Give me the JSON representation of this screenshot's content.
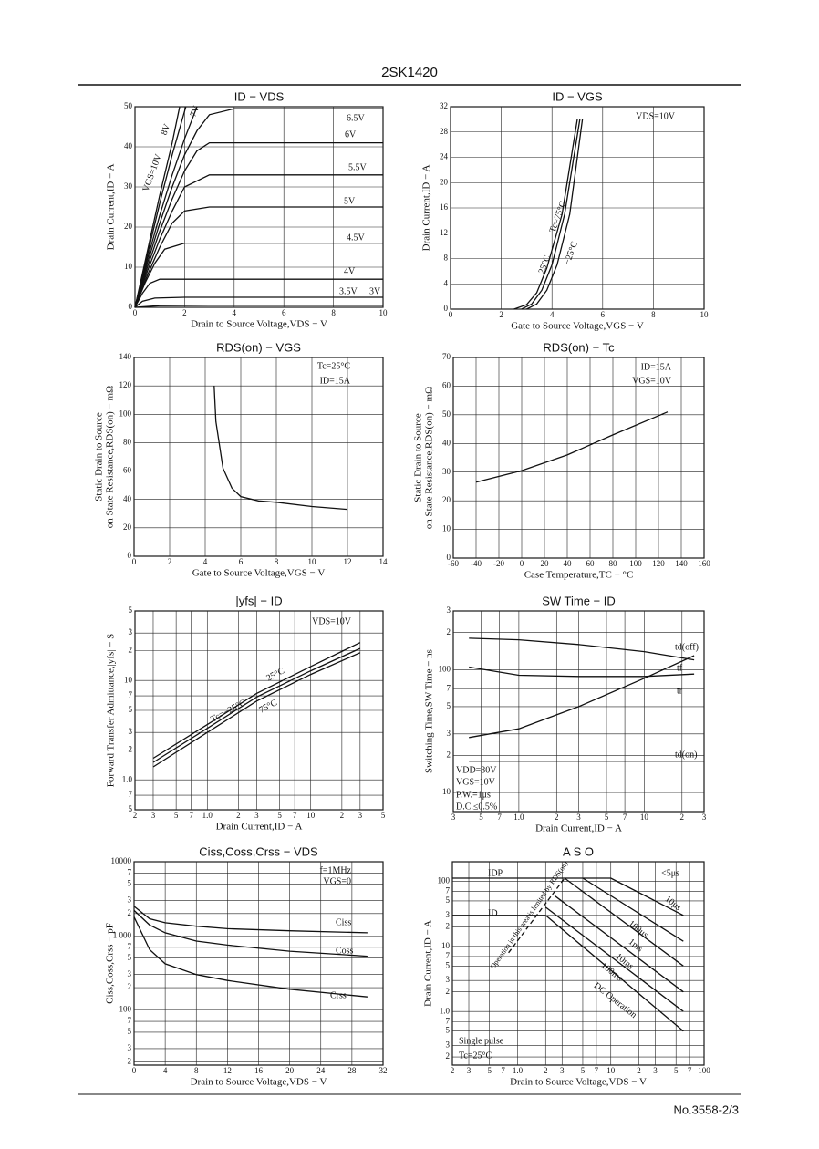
{
  "header": {
    "title": "2SK1420"
  },
  "chart_data": [
    {
      "type": "line",
      "title": "ID − VDS",
      "xlabel": "Drain to Source Voltage,VDS − V",
      "ylabel": "Drain Current,ID − A",
      "xlim": [
        0,
        10
      ],
      "ylim": [
        0,
        50
      ],
      "xticks": [
        0,
        2,
        4,
        6,
        8,
        10
      ],
      "yticks": [
        0,
        10,
        20,
        30,
        40,
        50
      ],
      "grid": true,
      "color": "#111",
      "annotations": [],
      "series": [
        {
          "name": "3V",
          "x": [
            0,
            1,
            3,
            10
          ],
          "values": [
            0,
            0.4,
            0.5,
            0.5
          ]
        },
        {
          "name": "3.5V",
          "x": [
            0,
            0.3,
            0.8,
            2,
            10
          ],
          "values": [
            0,
            1.5,
            2.3,
            2.5,
            2.5
          ]
        },
        {
          "name": "4V",
          "x": [
            0,
            0.3,
            0.6,
            1,
            2,
            10
          ],
          "values": [
            0,
            3.5,
            6,
            7,
            7,
            7
          ]
        },
        {
          "name": "4.5V",
          "x": [
            0,
            0.4,
            0.8,
            1.2,
            2,
            10
          ],
          "values": [
            0,
            6,
            11,
            14.5,
            16,
            16
          ]
        },
        {
          "name": "5V",
          "x": [
            0,
            0.5,
            1,
            1.5,
            2,
            3,
            10
          ],
          "values": [
            0,
            8,
            15,
            21,
            24,
            25,
            25
          ]
        },
        {
          "name": "5.5V",
          "x": [
            0,
            0.5,
            1,
            1.5,
            2,
            3,
            10
          ],
          "values": [
            0,
            9,
            17,
            24,
            30,
            33,
            33
          ]
        },
        {
          "name": "6V",
          "x": [
            0,
            0.5,
            1,
            1.5,
            2,
            2.5,
            3,
            10
          ],
          "values": [
            0,
            10,
            19,
            27,
            34,
            39,
            41,
            41
          ]
        },
        {
          "name": "6.5V",
          "x": [
            0,
            0.5,
            1,
            1.5,
            2,
            2.5,
            3,
            4,
            10
          ],
          "values": [
            0,
            11,
            21,
            30,
            38,
            44,
            48,
            49.5,
            49.5
          ]
        },
        {
          "name": "7V",
          "x": [
            0,
            0.5,
            1,
            1.5,
            2,
            2.5
          ],
          "values": [
            0,
            12,
            23,
            33,
            42,
            50
          ]
        },
        {
          "name": "8V",
          "x": [
            0,
            0.5,
            1,
            1.5,
            2.05
          ],
          "values": [
            0,
            13,
            26,
            38,
            50
          ]
        },
        {
          "name": "VGS=10V",
          "x": [
            0,
            0.5,
            1,
            1.5,
            1.8
          ],
          "values": [
            0,
            14,
            28,
            41,
            50
          ]
        }
      ]
    },
    {
      "type": "line",
      "title": "ID − VGS",
      "xlabel": "Gate to Source Voltage,VGS − V",
      "ylabel": "Drain Current,ID − A",
      "xlim": [
        0,
        10
      ],
      "ylim": [
        0,
        32
      ],
      "xticks": [
        0,
        2,
        4,
        6,
        8,
        10
      ],
      "yticks": [
        0,
        4,
        8,
        12,
        16,
        20,
        24,
        28,
        32
      ],
      "grid": true,
      "color": "#111",
      "annotations": [
        "VDS=10V"
      ],
      "series": [
        {
          "name": "Tc=75°C",
          "x": [
            2.5,
            3,
            3.4,
            3.8,
            4.4,
            5.0
          ],
          "values": [
            0,
            0.7,
            2.6,
            6.5,
            15,
            30
          ]
        },
        {
          "name": "25°C",
          "x": [
            2.8,
            3.2,
            3.6,
            4,
            4.5,
            5.1
          ],
          "values": [
            0,
            0.8,
            3,
            7,
            15,
            30
          ]
        },
        {
          "name": "−25°C",
          "x": [
            3,
            3.4,
            3.8,
            4.2,
            4.7,
            5.2
          ],
          "values": [
            0,
            0.8,
            3,
            7,
            15,
            30
          ]
        }
      ]
    },
    {
      "type": "line",
      "title": "RDS(on) − VGS",
      "xlabel": "Gate to Source Voltage,VGS − V",
      "ylabel": [
        "Static Drain to Source",
        "on State Resistance,RDS(on) − mΩ"
      ],
      "xlim": [
        0,
        14
      ],
      "ylim": [
        0,
        140
      ],
      "xticks": [
        0,
        2,
        4,
        6,
        8,
        10,
        12,
        14
      ],
      "yticks": [
        0,
        20,
        40,
        60,
        80,
        100,
        120,
        140
      ],
      "grid": true,
      "color": "#111",
      "annotations": [
        "Tc=25°C",
        "ID=15A"
      ],
      "series": [
        {
          "name": "RDS(on)",
          "x": [
            4.5,
            4.6,
            5,
            5.5,
            6,
            7,
            8,
            10,
            12
          ],
          "values": [
            120,
            95,
            62,
            48,
            42,
            39,
            38,
            35,
            33
          ]
        }
      ]
    },
    {
      "type": "line",
      "title": "RDS(on) − Tc",
      "xlabel": "Case Temperature,TC − °C",
      "ylabel": [
        "Static Drain to Source",
        "on State Resistance,RDS(on) − mΩ"
      ],
      "xlim": [
        -60,
        160
      ],
      "ylim": [
        0,
        70
      ],
      "xticks": [
        -60,
        -40,
        -20,
        0,
        20,
        40,
        60,
        80,
        100,
        120,
        140,
        160
      ],
      "yticks": [
        0,
        10,
        20,
        30,
        40,
        50,
        60,
        70
      ],
      "grid": true,
      "color": "#111",
      "annotations": [
        "ID=15A",
        "VGS=10V"
      ],
      "series": [
        {
          "name": "RDS(on)",
          "x": [
            -40,
            0,
            40,
            80,
            128
          ],
          "values": [
            26.5,
            30.5,
            36,
            43,
            51
          ]
        }
      ]
    },
    {
      "type": "line",
      "title": "|yfs| − ID",
      "xlabel": "Drain Current,ID − A",
      "ylabel": "Forward Transfer Admittance,|yfs| − S",
      "xscale": "log",
      "yscale": "log",
      "xlim": [
        0.2,
        50
      ],
      "ylim": [
        0.5,
        50
      ],
      "xticks": [
        {
          "value": 0.2,
          "label": "2"
        },
        {
          "value": 0.3,
          "label": "3"
        },
        {
          "value": 0.5,
          "label": "5"
        },
        {
          "value": 0.7,
          "label": "7"
        },
        {
          "value": 1,
          "label": "1.0"
        },
        2,
        3,
        5,
        7,
        10,
        {
          "value": 20,
          "label": "2"
        },
        {
          "value": 30,
          "label": "3"
        },
        {
          "value": 50,
          "label": "5"
        }
      ],
      "yticks": [
        {
          "value": 50,
          "label": "5"
        },
        {
          "value": 30,
          "label": "3"
        },
        {
          "value": 20,
          "label": "2"
        },
        10,
        7,
        5,
        3,
        2,
        {
          "value": 1,
          "label": "1.0"
        },
        {
          "value": 0.7,
          "label": "7"
        },
        {
          "value": 0.5,
          "label": "5"
        }
      ],
      "grid": true,
      "color": "#111",
      "annotations": [
        "VDS=10V"
      ],
      "series": [
        {
          "name": "Tc=−25°C",
          "x": [
            0.3,
            1,
            3,
            10,
            30
          ],
          "values": [
            1.5,
            3.3,
            6.8,
            12.5,
            21
          ]
        },
        {
          "name": "25°C",
          "x": [
            0.3,
            1,
            3,
            10,
            30
          ],
          "values": [
            1.65,
            3.6,
            7.4,
            13.8,
            24
          ]
        },
        {
          "name": "75°C",
          "x": [
            0.3,
            1,
            3,
            10,
            30
          ],
          "values": [
            1.35,
            3.0,
            6.2,
            11.5,
            19
          ]
        }
      ]
    },
    {
      "type": "line",
      "title": "SW Time − ID",
      "xlabel": "Drain Current,ID − A",
      "ylabel": "Switching Time,SW Time − ns",
      "xscale": "log",
      "yscale": "log",
      "xlim": [
        0.3,
        30
      ],
      "ylim": [
        7,
        300
      ],
      "xticks": [
        {
          "value": 0.3,
          "label": "3"
        },
        {
          "value": 0.5,
          "label": "5"
        },
        {
          "value": 0.7,
          "label": "7"
        },
        {
          "value": 1,
          "label": "1.0"
        },
        2,
        3,
        5,
        7,
        10,
        {
          "value": 20,
          "label": "2"
        },
        {
          "value": 30,
          "label": "3"
        }
      ],
      "yticks": [
        {
          "value": 300,
          "label": "3"
        },
        {
          "value": 200,
          "label": "2"
        },
        100,
        {
          "value": 70,
          "label": "7"
        },
        {
          "value": 50,
          "label": "5"
        },
        {
          "value": 30,
          "label": "3"
        },
        {
          "value": 20,
          "label": "2"
        },
        10
      ],
      "grid": true,
      "color": "#111",
      "annotations": [
        "VDD=30V",
        "VGS=10V",
        "P.W.=1μs",
        "D.C.≤0.5%"
      ],
      "series": [
        {
          "name": "td(off)",
          "x": [
            0.4,
            1,
            3,
            10,
            25
          ],
          "values": [
            180,
            175,
            160,
            140,
            120
          ]
        },
        {
          "name": "tf",
          "x": [
            0.4,
            1,
            3,
            10,
            25
          ],
          "values": [
            105,
            90,
            88,
            88,
            92
          ]
        },
        {
          "name": "tr",
          "x": [
            0.4,
            1,
            3,
            10,
            25
          ],
          "values": [
            28,
            33,
            50,
            85,
            130
          ]
        },
        {
          "name": "td(on)",
          "x": [
            0.4,
            1,
            3,
            10,
            30
          ],
          "values": [
            18,
            18,
            18,
            18,
            18
          ]
        }
      ]
    },
    {
      "type": "line",
      "title": "Ciss,Coss,Crss − VDS",
      "xlabel": "Drain to Source Voltage,VDS − V",
      "ylabel": "Ciss,Coss,Crss − pF",
      "yscale": "log",
      "xlim": [
        0,
        32
      ],
      "ylim": [
        18,
        10000
      ],
      "xticks": [
        0,
        4,
        8,
        12,
        16,
        20,
        24,
        28,
        32
      ],
      "yticks": [
        10000,
        {
          "value": 7000,
          "label": "7"
        },
        {
          "value": 5000,
          "label": "5"
        },
        {
          "value": 3000,
          "label": "3"
        },
        {
          "value": 2000,
          "label": "2"
        },
        {
          "value": 1000,
          "label": "1 000"
        },
        {
          "value": 700,
          "label": "7"
        },
        {
          "value": 500,
          "label": "5"
        },
        {
          "value": 300,
          "label": "3"
        },
        {
          "value": 200,
          "label": "2"
        },
        100,
        {
          "value": 70,
          "label": "7"
        },
        {
          "value": 50,
          "label": "5"
        },
        {
          "value": 30,
          "label": "3"
        },
        {
          "value": 20,
          "label": "2"
        }
      ],
      "grid": true,
      "color": "#111",
      "annotations": [
        "f=1MHz",
        "VGS=0"
      ],
      "series": [
        {
          "name": "Ciss",
          "x": [
            0,
            2,
            4,
            8,
            12,
            20,
            30
          ],
          "values": [
            2500,
            1700,
            1500,
            1350,
            1250,
            1170,
            1100
          ]
        },
        {
          "name": "Coss",
          "x": [
            0,
            2,
            4,
            8,
            12,
            20,
            30
          ],
          "values": [
            2200,
            1400,
            1100,
            850,
            750,
            620,
            530
          ]
        },
        {
          "name": "Crss",
          "x": [
            0,
            2,
            4,
            8,
            12,
            20,
            30
          ],
          "values": [
            1800,
            650,
            420,
            300,
            250,
            190,
            150
          ]
        }
      ]
    },
    {
      "type": "line",
      "title": "A S O",
      "xlabel": "Drain to Source Voltage,VDS − V",
      "ylabel": "Drain Current,ID − A",
      "xscale": "log",
      "yscale": "log",
      "xlim": [
        0.2,
        100
      ],
      "ylim": [
        0.15,
        200
      ],
      "xticks": [
        {
          "value": 0.2,
          "label": "2"
        },
        {
          "value": 0.3,
          "label": "3"
        },
        {
          "value": 0.5,
          "label": "5"
        },
        {
          "value": 0.7,
          "label": "7"
        },
        {
          "value": 1,
          "label": "1.0"
        },
        2,
        3,
        5,
        7,
        10,
        {
          "value": 20,
          "label": "2"
        },
        {
          "value": 30,
          "label": "3"
        },
        {
          "value": 50,
          "label": "5"
        },
        {
          "value": 70,
          "label": "7"
        },
        100
      ],
      "yticks": [
        100,
        {
          "value": 70,
          "label": "7"
        },
        {
          "value": 50,
          "label": "5"
        },
        {
          "value": 30,
          "label": "3"
        },
        {
          "value": 20,
          "label": "2"
        },
        10,
        7,
        5,
        3,
        2,
        {
          "value": 1,
          "label": "1.0"
        },
        {
          "value": 0.7,
          "label": "7"
        },
        {
          "value": 0.5,
          "label": "5"
        },
        {
          "value": 0.3,
          "label": "3"
        },
        {
          "value": 0.2,
          "label": "2"
        }
      ],
      "grid": true,
      "color": "#111",
      "annotations": [
        "<5μs",
        "Single pulse",
        "Tc=25°C"
      ],
      "series": [
        {
          "name": "IDP",
          "x": [
            0.2,
            10
          ],
          "values": [
            112,
            112
          ]
        },
        {
          "name": "ID",
          "x": [
            0.2,
            2
          ],
          "values": [
            30,
            30
          ]
        },
        {
          "name": "Operation in this area is limited by RDS(on)",
          "x": [
            0.8,
            3.2
          ],
          "values": [
            8,
            112
          ],
          "dashed": true
        },
        {
          "name": "10μs",
          "x": [
            10,
            60
          ],
          "values": [
            112,
            30
          ]
        },
        {
          "name": "100μs",
          "x": [
            5,
            60
          ],
          "values": [
            112,
            12
          ]
        },
        {
          "name": "1ms",
          "x": [
            3.2,
            60
          ],
          "values": [
            112,
            5
          ]
        },
        {
          "name": "10ms",
          "x": [
            2.5,
            60
          ],
          "values": [
            60,
            2
          ]
        },
        {
          "name": "100ms",
          "x": [
            2,
            60
          ],
          "values": [
            40,
            1
          ]
        },
        {
          "name": "DC Operation",
          "x": [
            2,
            60
          ],
          "values": [
            30,
            0.5
          ]
        }
      ]
    }
  ],
  "footer": {
    "page": "No.3558-2/3"
  }
}
